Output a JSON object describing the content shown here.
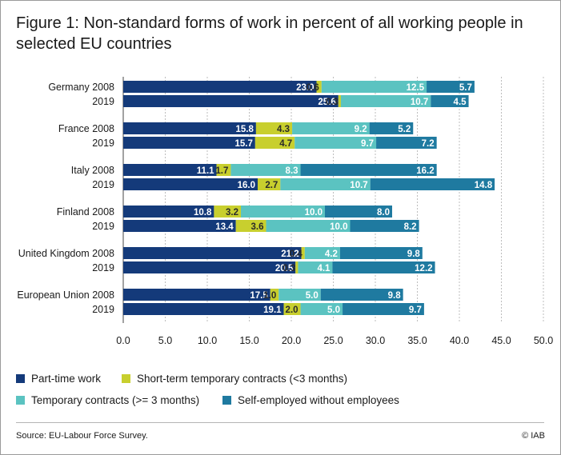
{
  "figure": {
    "title": "Figure 1: Non-standard forms of work in percent of all working people in selected EU countries",
    "source": "Source: EU-Labour Force Survey.",
    "copyright": "© IAB"
  },
  "chart_data": {
    "type": "bar",
    "orientation": "horizontal",
    "stacked": true,
    "categories": [
      "Germany 2008",
      "2019",
      "France 2008",
      "2019",
      "Italy 2008",
      "2019",
      "Finland 2008",
      "2019",
      "United Kingdom 2008",
      "2019",
      "European Union 2008",
      "2019"
    ],
    "series": [
      {
        "name": "Part-time work",
        "color": "#143a7a",
        "values": [
          23.0,
          25.6,
          15.8,
          15.7,
          11.1,
          16.0,
          10.8,
          13.4,
          21.2,
          20.5,
          17.5,
          19.1
        ],
        "labels": [
          "23.0",
          "25.6",
          "15.8",
          "15.7",
          "11.1",
          "16.0",
          "10.8",
          "13.4",
          "21.2",
          "20.5",
          "17.5",
          "19.1"
        ]
      },
      {
        "name": "Short-term temporary contracts (<3 months)",
        "color": "#c8cf2e",
        "values": [
          0.6,
          0.3,
          4.3,
          4.7,
          1.7,
          2.7,
          3.2,
          3.6,
          0.4,
          0.3,
          1.0,
          2.0
        ],
        "labels": [
          "0.6",
          "0.3",
          "4.3",
          "4.7",
          "1.7",
          "2.7",
          "3.2",
          "3.6",
          "0.4",
          "0.3",
          "1.0",
          "2.0"
        ]
      },
      {
        "name": "Temporary contracts (>= 3 months)",
        "color": "#5bc3c1",
        "values": [
          12.5,
          10.7,
          9.2,
          9.7,
          8.3,
          10.7,
          10.0,
          10.0,
          4.2,
          4.1,
          5.0,
          5.0
        ],
        "labels": [
          "12.5",
          "10.7",
          "9.2",
          "9.7",
          "8.3",
          "10.7",
          "10.0",
          "10.0",
          "4.2",
          "4.1",
          "5.0",
          "5.0"
        ]
      },
      {
        "name": "Self-employed without employees",
        "color": "#1f7aa0",
        "values": [
          5.7,
          4.5,
          5.2,
          7.2,
          16.2,
          14.8,
          8.0,
          8.2,
          9.8,
          12.2,
          9.8,
          9.7
        ],
        "labels": [
          "5.7",
          "4.5",
          "5.2",
          "7.2",
          "16.2",
          "14.8",
          "8.0",
          "8.2",
          "9.8",
          "12.2",
          "9.8",
          "9.7"
        ]
      }
    ],
    "xlim": [
      0,
      50
    ],
    "xticks": [
      "0.0",
      "5.0",
      "10.0",
      "15.0",
      "20.0",
      "25.0",
      "30.0",
      "35.0",
      "40.0",
      "45.0",
      "50.0"
    ],
    "grid": "vertical",
    "legend_position": "bottom"
  }
}
